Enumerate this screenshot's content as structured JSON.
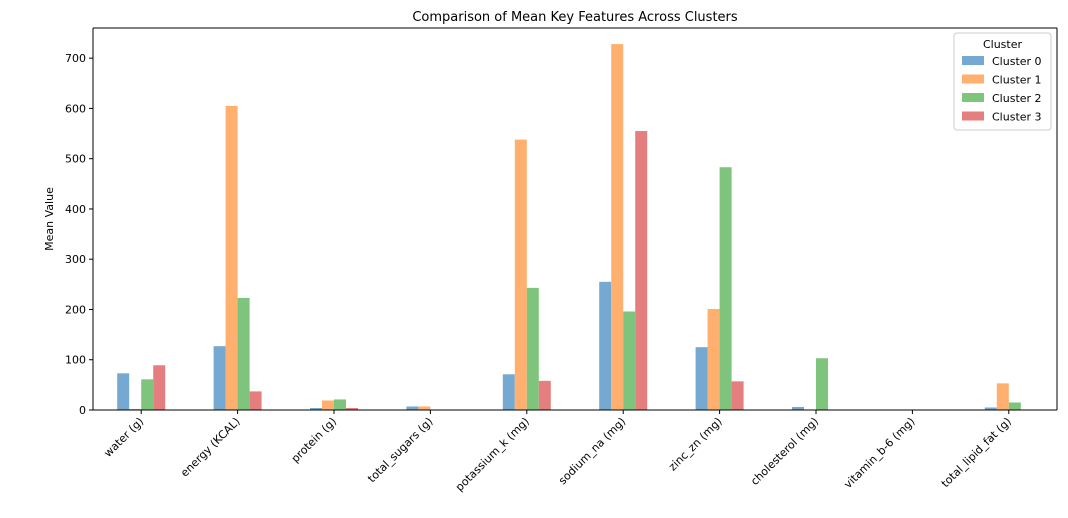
{
  "chart_data": {
    "type": "bar",
    "title": "Comparison of Mean Key Features Across Clusters",
    "xlabel": "",
    "ylabel": "Mean Value",
    "ylim": [
      0,
      760
    ],
    "yticks": [
      0,
      100,
      200,
      300,
      400,
      500,
      600,
      700
    ],
    "categories": [
      "water (g)",
      "energy (KCAL)",
      "protein (g)",
      "total_sugars (g)",
      "potassium_k (mg)",
      "sodium_na (mg)",
      "zinc_zn (mg)",
      "cholesterol (mg)",
      "vitamin_b-6 (mg)",
      "total_lipid_fat (g)"
    ],
    "series": [
      {
        "name": "Cluster 0",
        "color": "#76a9d2",
        "values": [
          73,
          127,
          4,
          7,
          71,
          255,
          125,
          6,
          0.3,
          5
        ]
      },
      {
        "name": "Cluster 1",
        "color": "#ffb06e",
        "values": [
          2,
          605,
          19,
          7,
          538,
          728,
          201,
          0,
          0.4,
          53
        ]
      },
      {
        "name": "Cluster 2",
        "color": "#7fc47c",
        "values": [
          61,
          223,
          21,
          0.5,
          243,
          196,
          483,
          103,
          0.2,
          15
        ]
      },
      {
        "name": "Cluster 3",
        "color": "#e57e7f",
        "values": [
          89,
          37,
          4,
          0.5,
          58,
          555,
          57,
          0,
          0.1,
          0
        ]
      }
    ],
    "legend": {
      "title": "Cluster",
      "position": "top-right"
    },
    "grid": false
  }
}
